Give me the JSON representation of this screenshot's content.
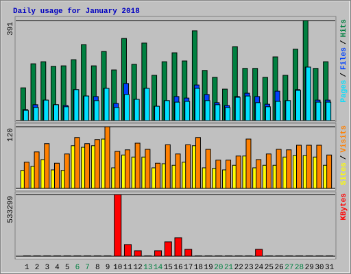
{
  "chart_data": [
    {
      "type": "bar",
      "title": "Daily usage for January 2018",
      "ylim": [
        0,
        391
      ],
      "yticks": [
        391
      ],
      "legend_separator": "/",
      "series": [
        {
          "name": "Hits",
          "color": "#008040",
          "values": [
            128,
            222,
            230,
            212,
            214,
            238,
            297,
            214,
            270,
            198,
            321,
            220,
            303,
            177,
            230,
            265,
            233,
            351,
            196,
            169,
            123,
            289,
            204,
            204,
            169,
            249,
            177,
            279,
            391,
            204,
            230
          ]
        },
        {
          "name": "Files",
          "color": "#0040ff",
          "values": [
            43,
            62,
            80,
            62,
            59,
            121,
            96,
            94,
            126,
            67,
            145,
            83,
            126,
            56,
            78,
            94,
            88,
            139,
            102,
            70,
            59,
            94,
            107,
            94,
            64,
            115,
            78,
            121,
            209,
            80,
            80
          ]
        },
        {
          "name": "Pages",
          "color": "#00e0ff",
          "values": [
            40,
            51,
            80,
            62,
            54,
            121,
            96,
            78,
            126,
            51,
            102,
            83,
            126,
            56,
            78,
            72,
            75,
            126,
            78,
            62,
            51,
            91,
            96,
            70,
            54,
            75,
            78,
            118,
            209,
            72,
            72
          ]
        }
      ]
    },
    {
      "type": "bar",
      "ylim": [
        0,
        120
      ],
      "yticks": [
        120
      ],
      "legend_separator": "/",
      "series": [
        {
          "name": "Visits",
          "color": "#ff8000",
          "values": [
            51,
            71,
            87,
            49,
            67,
            99,
            87,
            95,
            120,
            72,
            75,
            88,
            76,
            49,
            85,
            67,
            85,
            99,
            76,
            55,
            55,
            63,
            96,
            56,
            67,
            76,
            75,
            84,
            84,
            84,
            65
          ]
        },
        {
          "name": "Sites",
          "color": "#ffff00",
          "values": [
            35,
            43,
            56,
            36,
            35,
            83,
            80,
            83,
            96,
            40,
            65,
            61,
            61,
            40,
            48,
            45,
            51,
            83,
            40,
            39,
            36,
            45,
            63,
            40,
            45,
            45,
            61,
            64,
            64,
            61,
            45
          ]
        }
      ]
    },
    {
      "type": "bar",
      "ylim": [
        0,
        533299
      ],
      "yticks": [
        533299
      ],
      "categories": [
        "1",
        "2",
        "3",
        "4",
        "5",
        "6",
        "7",
        "8",
        "9",
        "10",
        "11",
        "12",
        "13",
        "14",
        "15",
        "16",
        "17",
        "18",
        "19",
        "20",
        "21",
        "22",
        "23",
        "24",
        "25",
        "26",
        "27",
        "28",
        "29",
        "30",
        "31"
      ],
      "category_colors": [
        "#000000",
        "#000000",
        "#000000",
        "#000000",
        "#000000",
        "#008040",
        "#008040",
        "#000000",
        "#000000",
        "#000000",
        "#000000",
        "#000000",
        "#008040",
        "#008040",
        "#000000",
        "#000000",
        "#000000",
        "#000000",
        "#000000",
        "#008040",
        "#008040",
        "#000000",
        "#000000",
        "#000000",
        "#000000",
        "#000000",
        "#008040",
        "#008040",
        "#000000",
        "#000000",
        "#000000"
      ],
      "series": [
        {
          "name": "KBytes",
          "color": "#ff0000",
          "values": [
            3000,
            3000,
            3000,
            3000,
            3000,
            3000,
            3000,
            3000,
            3000,
            533299,
            100734,
            47404,
            3000,
            47404,
            124436,
            159990,
            59255,
            3000,
            3000,
            3000,
            3000,
            3000,
            3000,
            59255,
            3000,
            3000,
            3000,
            3000,
            3000,
            3000,
            3000
          ]
        }
      ]
    }
  ]
}
